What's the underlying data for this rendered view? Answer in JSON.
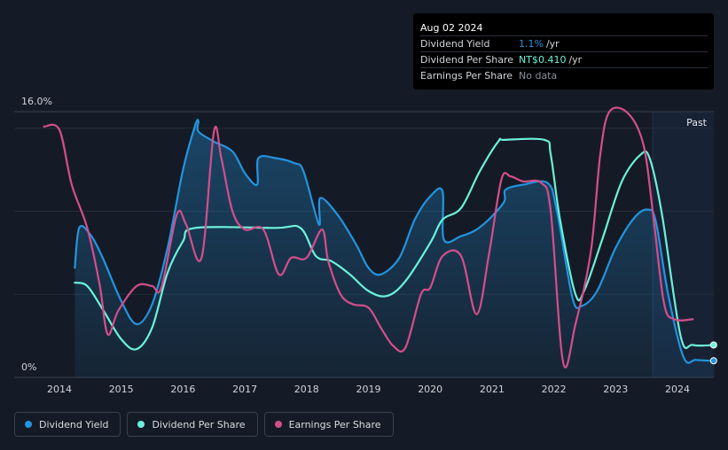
{
  "tooltip": {
    "date": "Aug 02 2024",
    "rows": [
      {
        "label": "Dividend Yield",
        "value": "1.1%",
        "unit": "/yr",
        "color": "#2394df"
      },
      {
        "label": "Dividend Per Share",
        "value": "NT$0.410",
        "unit": "/yr",
        "color": "#6cf2da"
      },
      {
        "label": "Earnings Per Share",
        "value": "No data"
      }
    ]
  },
  "past_label": "Past",
  "legend": [
    {
      "label": "Dividend Yield",
      "color": "#2394df"
    },
    {
      "label": "Dividend Per Share",
      "color": "#6cf2da"
    },
    {
      "label": "Earnings Per Share",
      "color": "#d44e8c"
    }
  ],
  "chart_data": {
    "type": "line",
    "title": "",
    "xlabel": "",
    "ylabel": "",
    "y_tick_labels": [
      "16.0%",
      "0%"
    ],
    "ylim": [
      0,
      16
    ],
    "x_ticks": [
      2014,
      2015,
      2016,
      2017,
      2018,
      2019,
      2020,
      2021,
      2022,
      2023,
      2024
    ],
    "xlim": [
      2013.25,
      2024.6
    ],
    "past_region_start": 2023.6,
    "series": [
      {
        "name": "Dividend Yield",
        "color": "#2394df",
        "filled": true,
        "points": [
          [
            2014.25,
            6.6
          ],
          [
            2014.32,
            9.0
          ],
          [
            2014.5,
            8.6
          ],
          [
            2014.7,
            7.2
          ],
          [
            2015.0,
            4.6
          ],
          [
            2015.25,
            3.2
          ],
          [
            2015.5,
            4.4
          ],
          [
            2015.75,
            7.8
          ],
          [
            2016.0,
            12.5
          ],
          [
            2016.2,
            15.2
          ],
          [
            2016.25,
            15.4
          ],
          [
            2016.25,
            14.8
          ],
          [
            2016.5,
            14.2
          ],
          [
            2016.8,
            13.6
          ],
          [
            2017.0,
            12.3
          ],
          [
            2017.2,
            11.6
          ],
          [
            2017.22,
            13.2
          ],
          [
            2017.5,
            13.2
          ],
          [
            2017.8,
            12.9
          ],
          [
            2017.95,
            12.4
          ],
          [
            2018.2,
            9.2
          ],
          [
            2018.22,
            10.8
          ],
          [
            2018.5,
            9.8
          ],
          [
            2018.8,
            8.0
          ],
          [
            2019.0,
            6.6
          ],
          [
            2019.2,
            6.2
          ],
          [
            2019.5,
            7.2
          ],
          [
            2019.75,
            9.5
          ],
          [
            2020.0,
            10.9
          ],
          [
            2020.2,
            11.2
          ],
          [
            2020.22,
            8.3
          ],
          [
            2020.5,
            8.5
          ],
          [
            2020.75,
            8.9
          ],
          [
            2021.0,
            9.7
          ],
          [
            2021.2,
            10.6
          ],
          [
            2021.22,
            11.3
          ],
          [
            2021.5,
            11.6
          ],
          [
            2021.9,
            11.7
          ],
          [
            2022.05,
            10.0
          ],
          [
            2022.3,
            4.8
          ],
          [
            2022.45,
            4.3
          ],
          [
            2022.7,
            5.2
          ],
          [
            2023.0,
            7.8
          ],
          [
            2023.3,
            9.6
          ],
          [
            2023.52,
            10.1
          ],
          [
            2023.65,
            9.4
          ],
          [
            2023.85,
            5.0
          ],
          [
            2024.1,
            1.2
          ],
          [
            2024.3,
            1.05
          ],
          [
            2024.6,
            1.0
          ]
        ]
      },
      {
        "name": "Dividend Per Share",
        "color": "#6cf2da",
        "filled": false,
        "points": [
          [
            2014.25,
            5.7
          ],
          [
            2014.45,
            5.5
          ],
          [
            2014.7,
            4.1
          ],
          [
            2015.0,
            2.3
          ],
          [
            2015.25,
            1.7
          ],
          [
            2015.5,
            3.0
          ],
          [
            2015.75,
            6.3
          ],
          [
            2016.0,
            8.2
          ],
          [
            2016.2,
            9.0
          ],
          [
            2017.5,
            9.0
          ],
          [
            2017.9,
            9.0
          ],
          [
            2018.15,
            7.3
          ],
          [
            2018.4,
            7.0
          ],
          [
            2018.7,
            6.2
          ],
          [
            2019.0,
            5.2
          ],
          [
            2019.3,
            4.9
          ],
          [
            2019.6,
            5.8
          ],
          [
            2020.0,
            8.1
          ],
          [
            2020.2,
            9.5
          ],
          [
            2020.5,
            10.2
          ],
          [
            2020.8,
            12.4
          ],
          [
            2021.1,
            14.2
          ],
          [
            2021.2,
            14.3
          ],
          [
            2021.85,
            14.3
          ],
          [
            2021.95,
            13.4
          ],
          [
            2022.1,
            9.5
          ],
          [
            2022.35,
            5.0
          ],
          [
            2022.5,
            5.3
          ],
          [
            2022.8,
            8.5
          ],
          [
            2023.1,
            11.8
          ],
          [
            2023.4,
            13.4
          ],
          [
            2023.55,
            13.2
          ],
          [
            2023.75,
            9.8
          ],
          [
            2024.05,
            2.5
          ],
          [
            2024.25,
            1.95
          ],
          [
            2024.6,
            1.95
          ]
        ]
      },
      {
        "name": "Earnings Per Share",
        "color": "#d44e8c",
        "filled": false,
        "points": [
          [
            2013.75,
            15.1
          ],
          [
            2014.0,
            14.9
          ],
          [
            2014.2,
            11.6
          ],
          [
            2014.45,
            9.0
          ],
          [
            2014.65,
            5.6
          ],
          [
            2014.78,
            2.6
          ],
          [
            2014.95,
            4.0
          ],
          [
            2015.25,
            5.5
          ],
          [
            2015.5,
            5.5
          ],
          [
            2015.65,
            5.4
          ],
          [
            2015.9,
            9.8
          ],
          [
            2016.05,
            9.2
          ],
          [
            2016.3,
            7.2
          ],
          [
            2016.5,
            14.8
          ],
          [
            2016.62,
            13.2
          ],
          [
            2016.8,
            10.0
          ],
          [
            2017.0,
            8.9
          ],
          [
            2017.3,
            8.9
          ],
          [
            2017.55,
            6.2
          ],
          [
            2017.75,
            7.2
          ],
          [
            2018.0,
            7.2
          ],
          [
            2018.25,
            8.9
          ],
          [
            2018.35,
            7.0
          ],
          [
            2018.55,
            5.0
          ],
          [
            2018.75,
            4.4
          ],
          [
            2019.0,
            4.2
          ],
          [
            2019.2,
            3.0
          ],
          [
            2019.4,
            1.9
          ],
          [
            2019.6,
            1.8
          ],
          [
            2019.85,
            5.0
          ],
          [
            2020.0,
            5.4
          ],
          [
            2020.2,
            7.3
          ],
          [
            2020.5,
            7.3
          ],
          [
            2020.75,
            3.8
          ],
          [
            2020.95,
            7.4
          ],
          [
            2021.15,
            11.9
          ],
          [
            2021.3,
            12.1
          ],
          [
            2021.5,
            11.8
          ],
          [
            2021.8,
            11.7
          ],
          [
            2021.95,
            10.0
          ],
          [
            2022.15,
            0.9
          ],
          [
            2022.35,
            3.2
          ],
          [
            2022.6,
            7.6
          ],
          [
            2022.75,
            13.4
          ],
          [
            2022.9,
            16.0
          ],
          [
            2023.2,
            15.9
          ],
          [
            2023.45,
            14.0
          ],
          [
            2023.6,
            10.0
          ],
          [
            2023.78,
            4.5
          ],
          [
            2023.95,
            3.5
          ],
          [
            2024.25,
            3.5
          ]
        ]
      }
    ]
  }
}
